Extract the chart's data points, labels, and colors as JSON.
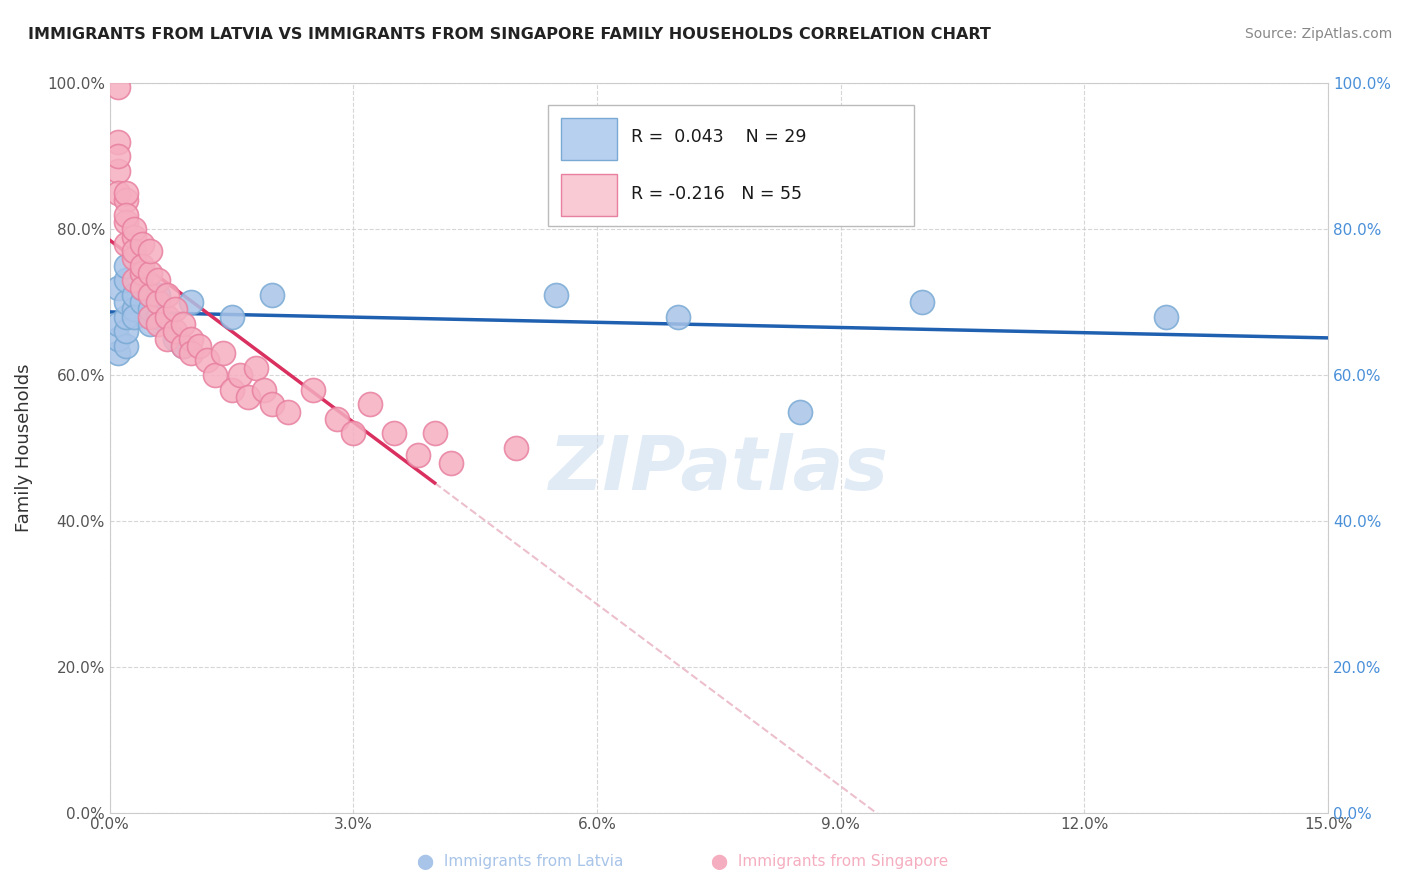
{
  "title": "IMMIGRANTS FROM LATVIA VS IMMIGRANTS FROM SINGAPORE FAMILY HOUSEHOLDS CORRELATION CHART",
  "source": "Source: ZipAtlas.com",
  "xlabel_label": "Immigrants from Latvia",
  "xlabel_label2": "Immigrants from Singapore",
  "ylabel": "Family Households",
  "xlim": [
    0.0,
    0.15
  ],
  "ylim": [
    0.0,
    1.0
  ],
  "xticks": [
    0.0,
    0.03,
    0.06,
    0.09,
    0.12,
    0.15
  ],
  "yticks": [
    0.0,
    0.2,
    0.4,
    0.6,
    0.8,
    1.0
  ],
  "xtick_labels": [
    "0.0%",
    "3.0%",
    "6.0%",
    "9.0%",
    "12.0%",
    "15.0%"
  ],
  "ytick_labels": [
    "0.0%",
    "20.0%",
    "40.0%",
    "60.0%",
    "80.0%",
    "100.0%"
  ],
  "latvia_color": "#a8c4e8",
  "singapore_color": "#f5aec0",
  "latvia_edge": "#7aaad4",
  "singapore_edge": "#e880a0",
  "trend_latvia_color": "#2060b0",
  "trend_singapore_color": "#d93060",
  "trend_dashed_color": "#e8b0c0",
  "R_latvia": 0.043,
  "N_latvia": 29,
  "R_singapore": -0.216,
  "N_singapore": 55,
  "latvia_x": [
    0.001,
    0.001,
    0.001,
    0.001,
    0.002,
    0.002,
    0.002,
    0.002,
    0.002,
    0.002,
    0.003,
    0.003,
    0.003,
    0.004,
    0.004,
    0.005,
    0.005,
    0.006,
    0.006,
    0.008,
    0.009,
    0.01,
    0.015,
    0.02,
    0.055,
    0.07,
    0.085,
    0.1,
    0.13
  ],
  "latvia_y": [
    0.63,
    0.65,
    0.67,
    0.72,
    0.64,
    0.66,
    0.68,
    0.7,
    0.73,
    0.75,
    0.69,
    0.71,
    0.68,
    0.7,
    0.72,
    0.67,
    0.69,
    0.71,
    0.68,
    0.65,
    0.64,
    0.7,
    0.68,
    0.71,
    0.71,
    0.68,
    0.55,
    0.7,
    0.68
  ],
  "singapore_x": [
    0.001,
    0.001,
    0.001,
    0.001,
    0.001,
    0.002,
    0.002,
    0.002,
    0.002,
    0.002,
    0.003,
    0.003,
    0.003,
    0.003,
    0.003,
    0.004,
    0.004,
    0.004,
    0.004,
    0.005,
    0.005,
    0.005,
    0.005,
    0.006,
    0.006,
    0.006,
    0.007,
    0.007,
    0.007,
    0.008,
    0.008,
    0.009,
    0.009,
    0.01,
    0.01,
    0.011,
    0.012,
    0.013,
    0.014,
    0.015,
    0.016,
    0.017,
    0.018,
    0.019,
    0.02,
    0.022,
    0.025,
    0.028,
    0.03,
    0.032,
    0.035,
    0.038,
    0.04,
    0.042,
    0.05
  ],
  "singapore_y": [
    0.995,
    0.92,
    0.88,
    0.85,
    0.9,
    0.84,
    0.81,
    0.78,
    0.85,
    0.82,
    0.79,
    0.76,
    0.73,
    0.8,
    0.77,
    0.74,
    0.72,
    0.78,
    0.75,
    0.71,
    0.74,
    0.77,
    0.68,
    0.7,
    0.73,
    0.67,
    0.68,
    0.71,
    0.65,
    0.66,
    0.69,
    0.64,
    0.67,
    0.65,
    0.63,
    0.64,
    0.62,
    0.6,
    0.63,
    0.58,
    0.6,
    0.57,
    0.61,
    0.58,
    0.56,
    0.55,
    0.58,
    0.54,
    0.52,
    0.56,
    0.52,
    0.49,
    0.52,
    0.48,
    0.5
  ],
  "background_color": "#ffffff",
  "grid_color": "#cccccc",
  "watermark": "ZIPatlas",
  "legend_box_color_latvia": "#b8d0f0",
  "legend_box_color_singapore": "#f9c9d4"
}
